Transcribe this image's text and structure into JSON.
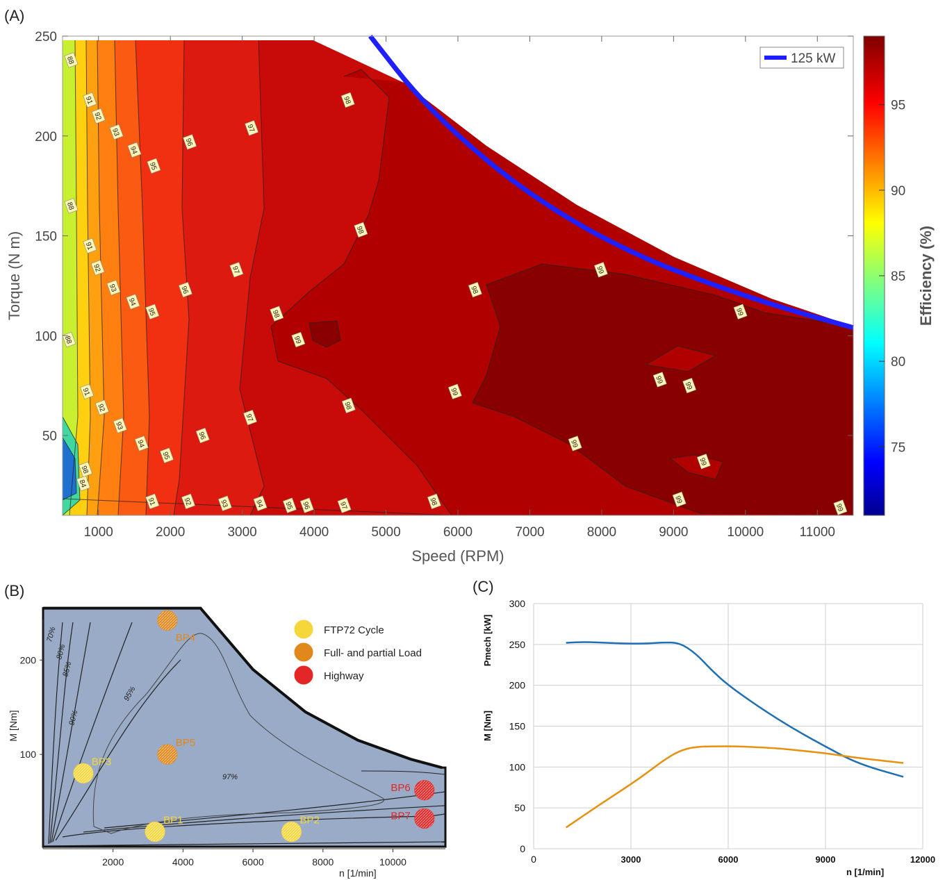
{
  "panels": {
    "a": "(A)",
    "b": "(B)",
    "c": "(C)"
  },
  "colors": {
    "limit_line": "#1f1fff",
    "map_fill": "#9aabc7",
    "bp_yellow": "#f5d63b",
    "bp_orange": "#e0881c",
    "bp_red": "#e32626",
    "line_blue": "#1f6fb5",
    "line_orange": "#e8900f"
  },
  "chart_data": [
    {
      "id": "A",
      "type": "heatmap",
      "xlabel": "Speed (RPM)",
      "ylabel": "Torque (N m)",
      "colorbar_label": "Efficiency (%)",
      "colorbar_ticks": [
        75,
        80,
        85,
        90,
        95
      ],
      "colorbar_range": [
        71,
        99
      ],
      "colormap": "jet",
      "xlim": [
        500,
        11500
      ],
      "ylim": [
        10,
        250
      ],
      "xticks": [
        1000,
        2000,
        3000,
        4000,
        5000,
        6000,
        7000,
        8000,
        9000,
        10000,
        11000
      ],
      "yticks": [
        50,
        100,
        150,
        200,
        250
      ],
      "legend": {
        "position": "top-right",
        "entries": [
          "125 kW"
        ]
      },
      "power_limit_curve": {
        "name": "125 kW",
        "x": [
          4780,
          5500,
          6500,
          7500,
          8500,
          9500,
          10500,
          11500
        ],
        "y": [
          250,
          217,
          184,
          159,
          140,
          126,
          114,
          104
        ]
      },
      "contour_levels": [
        84,
        88,
        91,
        92,
        93,
        94,
        95,
        96,
        97,
        98,
        99
      ],
      "contour_labels": [
        {
          "text": "88",
          "x": 620,
          "y": 238
        },
        {
          "text": "91",
          "x": 880,
          "y": 218
        },
        {
          "text": "92",
          "x": 1000,
          "y": 210
        },
        {
          "text": "93",
          "x": 1250,
          "y": 202
        },
        {
          "text": "94",
          "x": 1500,
          "y": 193
        },
        {
          "text": "95",
          "x": 1770,
          "y": 185
        },
        {
          "text": "96",
          "x": 2270,
          "y": 197
        },
        {
          "text": "97",
          "x": 3130,
          "y": 204
        },
        {
          "text": "98",
          "x": 4470,
          "y": 218
        },
        {
          "text": "88",
          "x": 620,
          "y": 165
        },
        {
          "text": "91",
          "x": 880,
          "y": 145
        },
        {
          "text": "92",
          "x": 990,
          "y": 134
        },
        {
          "text": "93",
          "x": 1210,
          "y": 124
        },
        {
          "text": "94",
          "x": 1480,
          "y": 117
        },
        {
          "text": "95",
          "x": 1750,
          "y": 112
        },
        {
          "text": "96",
          "x": 2210,
          "y": 123
        },
        {
          "text": "97",
          "x": 2920,
          "y": 133
        },
        {
          "text": "98",
          "x": 4650,
          "y": 153
        },
        {
          "text": "99",
          "x": 3780,
          "y": 98
        },
        {
          "text": "98",
          "x": 3480,
          "y": 111
        },
        {
          "text": "98",
          "x": 6240,
          "y": 123
        },
        {
          "text": "99",
          "x": 7990,
          "y": 133
        },
        {
          "text": "99",
          "x": 9930,
          "y": 112
        },
        {
          "text": "99",
          "x": 8810,
          "y": 78
        },
        {
          "text": "99",
          "x": 9220,
          "y": 75
        },
        {
          "text": "88",
          "x": 590,
          "y": 98
        },
        {
          "text": "91",
          "x": 840,
          "y": 72
        },
        {
          "text": "92",
          "x": 1050,
          "y": 64
        },
        {
          "text": "93",
          "x": 1300,
          "y": 55
        },
        {
          "text": "94",
          "x": 1600,
          "y": 46
        },
        {
          "text": "95",
          "x": 1950,
          "y": 40
        },
        {
          "text": "96",
          "x": 2450,
          "y": 50
        },
        {
          "text": "97",
          "x": 3110,
          "y": 59
        },
        {
          "text": "98",
          "x": 4480,
          "y": 65
        },
        {
          "text": "99",
          "x": 5960,
          "y": 72
        },
        {
          "text": "99",
          "x": 7630,
          "y": 46
        },
        {
          "text": "99",
          "x": 9420,
          "y": 37
        },
        {
          "text": "84",
          "x": 790,
          "y": 26
        },
        {
          "text": "98",
          "x": 820,
          "y": 33
        },
        {
          "text": "91",
          "x": 1750,
          "y": 17
        },
        {
          "text": "92",
          "x": 2250,
          "y": 17
        },
        {
          "text": "93",
          "x": 2760,
          "y": 16
        },
        {
          "text": "94",
          "x": 3250,
          "y": 16
        },
        {
          "text": "95",
          "x": 3660,
          "y": 15
        },
        {
          "text": "96",
          "x": 3900,
          "y": 15
        },
        {
          "text": "97",
          "x": 4420,
          "y": 15
        },
        {
          "text": "98",
          "x": 5670,
          "y": 17
        },
        {
          "text": "99",
          "x": 9080,
          "y": 18
        },
        {
          "text": "99",
          "x": 11320,
          "y": 14
        }
      ]
    },
    {
      "id": "B",
      "type": "scatter",
      "xlabel": "n [1/min]",
      "ylabel": "M [Nm]",
      "xticks": [
        2000,
        4000,
        6000,
        8000,
        10000
      ],
      "yticks": [
        100,
        200
      ],
      "xlim": [
        0,
        11500
      ],
      "ylim": [
        0,
        265
      ],
      "efficiency_labels": [
        "70%",
        "80%",
        "85%",
        "90%",
        "95%",
        "97%"
      ],
      "full_load_curve": {
        "x": [
          500,
          4500,
          6000,
          7500,
          9000,
          10500,
          11400
        ],
        "y": [
          255,
          255,
          190,
          145,
          115,
          95,
          86
        ]
      },
      "points": [
        {
          "name": "BP1",
          "x": 3200,
          "y": 18,
          "cycle": "FTP72 Cycle"
        },
        {
          "name": "BP2",
          "x": 7100,
          "y": 18,
          "cycle": "FTP72 Cycle"
        },
        {
          "name": "BP3",
          "x": 1150,
          "y": 80,
          "cycle": "FTP72 Cycle"
        },
        {
          "name": "BP4",
          "x": 3550,
          "y": 242,
          "cycle": "Full- and partial Load"
        },
        {
          "name": "BP5",
          "x": 3550,
          "y": 100,
          "cycle": "Full- and partial Load"
        },
        {
          "name": "BP6",
          "x": 10900,
          "y": 62,
          "cycle": "Highway"
        },
        {
          "name": "BP7",
          "x": 10900,
          "y": 32,
          "cycle": "Highway"
        }
      ],
      "legend": {
        "position": "top-right",
        "entries": [
          "FTP72 Cycle",
          "Full- and partial Load",
          "Highway"
        ]
      }
    },
    {
      "id": "C",
      "type": "line",
      "xlabel": "n [1/min]",
      "ylabel": "M [Nm]",
      "ylabel2": "Pmech [kW]",
      "xticks": [
        0,
        3000,
        6000,
        9000,
        12000
      ],
      "yticks": [
        0,
        50,
        100,
        150,
        200,
        250,
        300
      ],
      "xlim": [
        0,
        12000
      ],
      "ylim": [
        0,
        300
      ],
      "grid": true,
      "series": [
        {
          "x": [
            1000,
            1500,
            2000,
            2500,
            3000,
            3500,
            4000,
            4500,
            5000,
            5500,
            6000,
            7000,
            8000,
            9000,
            10000,
            11400
          ],
          "values": [
            252,
            253,
            252.5,
            251.5,
            251,
            251,
            252.5,
            252,
            239,
            218,
            200,
            172,
            147,
            125,
            104,
            88
          ]
        },
        {
          "x": [
            1000,
            2000,
            3000,
            3500,
            4000,
            4500,
            5000,
            6000,
            6500,
            7500,
            8000,
            9000,
            10000,
            11400
          ],
          "values": [
            26,
            53,
            79,
            93,
            108,
            120,
            125,
            125.5,
            125,
            123,
            121,
            117,
            111,
            105
          ]
        }
      ]
    }
  ]
}
